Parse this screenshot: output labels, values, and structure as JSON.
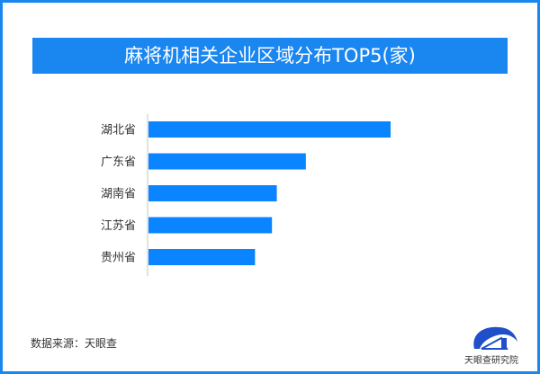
{
  "title": "麻将机相关企业区域分布TOP5(家)",
  "source": "数据来源：天眼查",
  "logo_text": "天眼查研究院",
  "colors": {
    "bar": "#0a84ff",
    "title_bg": "#1a86f0",
    "frame": "#1a86f0"
  },
  "chart_data": {
    "type": "bar",
    "orientation": "horizontal",
    "title": "麻将机相关企业区域分布TOP5(家)",
    "categories": [
      "湖北省",
      "广东省",
      "湖南省",
      "江苏省",
      "贵州省"
    ],
    "values": [
      100,
      65,
      53,
      51,
      44
    ],
    "value_note_visible": false,
    "xlabel": "",
    "ylabel": "",
    "grid": false,
    "legend": "none"
  }
}
